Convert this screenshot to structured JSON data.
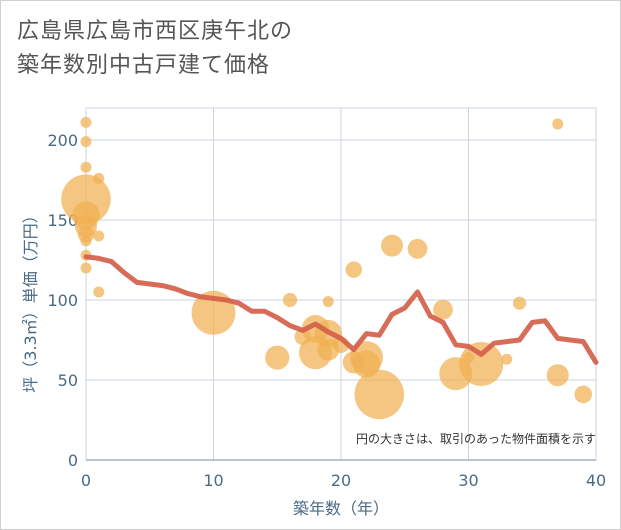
{
  "title_line1": "広島県広島市西区庚午北の",
  "title_line2": "築年数別中古戸建て価格",
  "note": "円の大きさは、取引のあった物件面積を示す",
  "chart_data": {
    "type": "scatter",
    "xlabel": "築年数（年）",
    "ylabel": "坪（3.3㎡）単価（万円）",
    "xlim": [
      0,
      40
    ],
    "ylim": [
      0,
      220
    ],
    "xticks": [
      0,
      10,
      20,
      30,
      40
    ],
    "yticks": [
      0,
      50,
      100,
      150,
      200
    ],
    "grid": true,
    "colors": {
      "bubble": "#f0b050",
      "line": "#d4604a",
      "grid": "#c8d6e0"
    },
    "bubbles": [
      {
        "x": 0,
        "y": 211,
        "s": 1
      },
      {
        "x": 0,
        "y": 199,
        "s": 1
      },
      {
        "x": 0,
        "y": 183,
        "s": 1
      },
      {
        "x": 0,
        "y": 163,
        "s": 4.5
      },
      {
        "x": 0,
        "y": 153,
        "s": 2.5
      },
      {
        "x": 0,
        "y": 146,
        "s": 2
      },
      {
        "x": 0,
        "y": 141,
        "s": 1.5
      },
      {
        "x": 0,
        "y": 137,
        "s": 1
      },
      {
        "x": 0,
        "y": 128,
        "s": 1
      },
      {
        "x": 0,
        "y": 120,
        "s": 1
      },
      {
        "x": 1,
        "y": 176,
        "s": 1
      },
      {
        "x": 1,
        "y": 140,
        "s": 1
      },
      {
        "x": 1,
        "y": 105,
        "s": 1
      },
      {
        "x": 10,
        "y": 92,
        "s": 4
      },
      {
        "x": 15,
        "y": 64,
        "s": 2.2
      },
      {
        "x": 16,
        "y": 100,
        "s": 1.3
      },
      {
        "x": 17,
        "y": 77,
        "s": 1.5
      },
      {
        "x": 18,
        "y": 82,
        "s": 2.5
      },
      {
        "x": 18,
        "y": 67,
        "s": 3
      },
      {
        "x": 19,
        "y": 99,
        "s": 1
      },
      {
        "x": 19,
        "y": 79,
        "s": 2.5
      },
      {
        "x": 19,
        "y": 69,
        "s": 2
      },
      {
        "x": 20,
        "y": 72,
        "s": 1.5
      },
      {
        "x": 21,
        "y": 119,
        "s": 1.5
      },
      {
        "x": 21,
        "y": 61,
        "s": 2
      },
      {
        "x": 22,
        "y": 64,
        "s": 3
      },
      {
        "x": 22,
        "y": 60,
        "s": 2.5
      },
      {
        "x": 23,
        "y": 41,
        "s": 4.5
      },
      {
        "x": 24,
        "y": 134,
        "s": 2
      },
      {
        "x": 26,
        "y": 132,
        "s": 1.8
      },
      {
        "x": 28,
        "y": 94,
        "s": 1.8
      },
      {
        "x": 29,
        "y": 54,
        "s": 3
      },
      {
        "x": 30,
        "y": 64,
        "s": 1
      },
      {
        "x": 31,
        "y": 60,
        "s": 4
      },
      {
        "x": 33,
        "y": 63,
        "s": 1
      },
      {
        "x": 34,
        "y": 98,
        "s": 1.2
      },
      {
        "x": 37,
        "y": 210,
        "s": 1
      },
      {
        "x": 37,
        "y": 53,
        "s": 2
      },
      {
        "x": 39,
        "y": 41,
        "s": 1.6
      }
    ],
    "line": {
      "x": [
        0,
        1,
        2,
        3,
        4,
        5,
        6,
        7,
        8,
        9,
        10,
        11,
        12,
        13,
        14,
        15,
        16,
        17,
        18,
        19,
        20,
        21,
        22,
        23,
        24,
        25,
        26,
        27,
        28,
        29,
        30,
        31,
        32,
        33,
        34,
        35,
        36,
        37,
        38,
        39,
        40
      ],
      "y": [
        127,
        126,
        124,
        117,
        111,
        110,
        109,
        107,
        104,
        102,
        101,
        100,
        98,
        93,
        93,
        89,
        84,
        81,
        85,
        80,
        76,
        69,
        79,
        78,
        91,
        95,
        105,
        90,
        86,
        72,
        71,
        66,
        73,
        74,
        75,
        86,
        87,
        76,
        75,
        74,
        61
      ]
    }
  }
}
